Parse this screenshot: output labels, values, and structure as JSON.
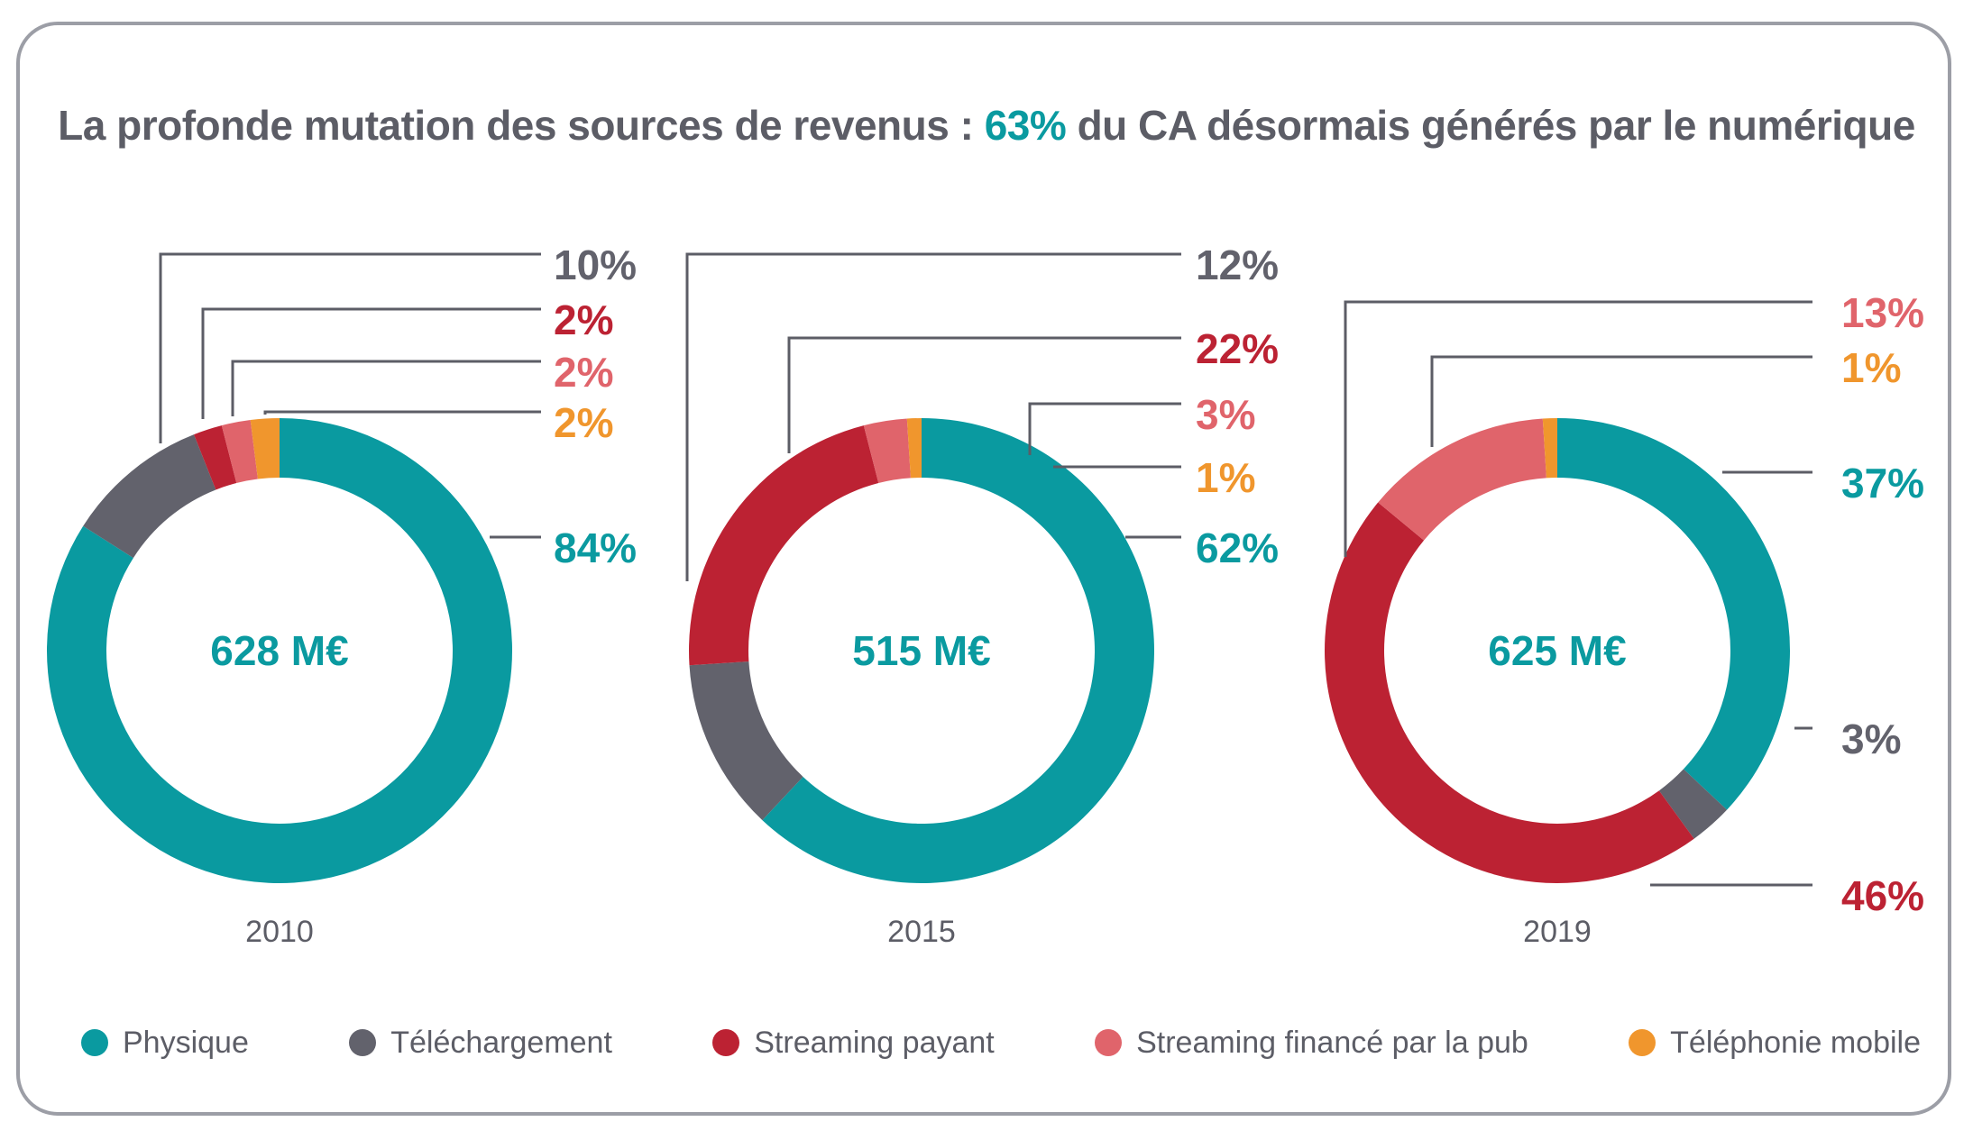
{
  "title": {
    "prefix": "La profonde mutation des sources de revenus : ",
    "highlight": "63%",
    "suffix": " du CA désormais générés par le numérique"
  },
  "colors": {
    "Physique": "#0a9aa0",
    "Téléchargement": "#62626c",
    "Streaming payant": "#bc2233",
    "Streaming financé par la pub": "#e0646b",
    "Téléphonie mobile": "#f0962d",
    "text": "#5c5d66",
    "leader": "#5c5d66"
  },
  "legend": [
    {
      "label": "Physique",
      "color": "#0a9aa0"
    },
    {
      "label": "Téléchargement",
      "color": "#62626c"
    },
    {
      "label": "Streaming payant",
      "color": "#bc2233"
    },
    {
      "label": "Streaming financé par la pub",
      "color": "#e0646b"
    },
    {
      "label": "Téléphonie mobile",
      "color": "#f0962d"
    }
  ],
  "chart_data": [
    {
      "type": "pie",
      "variant": "donut",
      "year": "2010",
      "center_label": "628 M€",
      "total": 628,
      "unit": "M€",
      "slices": [
        {
          "name": "Physique",
          "value": 84,
          "label": "84%"
        },
        {
          "name": "Téléchargement",
          "value": 10,
          "label": "10%"
        },
        {
          "name": "Streaming payant",
          "value": 2,
          "label": "2%"
        },
        {
          "name": "Streaming financé par la pub",
          "value": 2,
          "label": "2%"
        },
        {
          "name": "Téléphonie mobile",
          "value": 2,
          "label": "2%"
        }
      ]
    },
    {
      "type": "pie",
      "variant": "donut",
      "year": "2015",
      "center_label": "515 M€",
      "total": 515,
      "unit": "M€",
      "slices": [
        {
          "name": "Physique",
          "value": 62,
          "label": "62%"
        },
        {
          "name": "Téléchargement",
          "value": 12,
          "label": "12%"
        },
        {
          "name": "Streaming payant",
          "value": 22,
          "label": "22%"
        },
        {
          "name": "Streaming financé par la pub",
          "value": 3,
          "label": "3%"
        },
        {
          "name": "Téléphonie mobile",
          "value": 1,
          "label": "1%"
        }
      ]
    },
    {
      "type": "pie",
      "variant": "donut",
      "year": "2019",
      "center_label": "625 M€",
      "total": 625,
      "unit": "M€",
      "slices": [
        {
          "name": "Physique",
          "value": 37,
          "label": "37%"
        },
        {
          "name": "Téléchargement",
          "value": 3,
          "label": "3%"
        },
        {
          "name": "Streaming payant",
          "value": 46,
          "label": "46%"
        },
        {
          "name": "Streaming financé par la pub",
          "value": 13,
          "label": "13%"
        },
        {
          "name": "Téléphonie mobile",
          "value": 1,
          "label": "1%"
        }
      ]
    }
  ]
}
